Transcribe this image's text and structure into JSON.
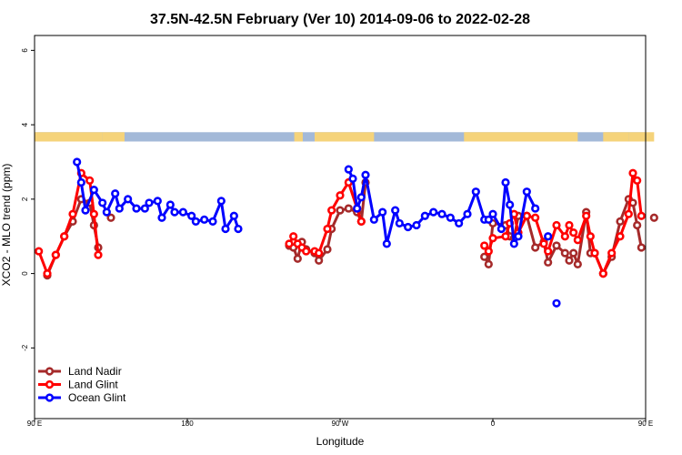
{
  "chart_data": {
    "type": "line",
    "title": "37.5N-42.5N February (Ver 10)   2014-09-06 to 2022-02-28",
    "xlabel": "Longitude",
    "ylabel": "XCO2 - MLO trend (ppm)",
    "xlim": [
      90,
      450
    ],
    "ylim": [
      -3.9,
      6.4
    ],
    "xticks": [
      {
        "value": 90,
        "label": "90 E"
      },
      {
        "value": 180,
        "label": "180"
      },
      {
        "value": 270,
        "label": "90 W"
      },
      {
        "value": 360,
        "label": "0"
      },
      {
        "value": 450,
        "label": "90 E"
      },
      {
        "value": 540,
        "label": "180"
      }
    ],
    "yticks": [
      {
        "value": -2,
        "label": "-2"
      },
      {
        "value": 0,
        "label": "0"
      },
      {
        "value": 2,
        "label": "2"
      },
      {
        "value": 4,
        "label": "4"
      },
      {
        "value": 6,
        "label": "6"
      }
    ],
    "grid": false,
    "legend_position": "bottom-left",
    "land_mask_strip": {
      "y_top": 3.8,
      "y_bottom": 3.55,
      "land_color": "#f5d37a",
      "ocean_color": "#a3b9d8"
    },
    "series": [
      {
        "name": "Land Nadir",
        "color": "#a52a2a",
        "segments": [
          [
            [
              97.5,
              -0.05
            ],
            [
              102.5,
              0.5
            ],
            [
              107.5,
              1.0
            ],
            [
              112.5,
              1.4
            ],
            [
              117.5,
              2.0
            ],
            [
              122.5,
              1.9
            ],
            [
              125,
              1.3
            ],
            [
              127.5,
              0.7
            ]
          ],
          [
            [
              135,
              1.5
            ]
          ],
          [
            [
              240,
              0.75
            ],
            [
              242.5,
              0.7
            ],
            [
              245,
              0.4
            ],
            [
              247.5,
              0.85
            ],
            [
              250,
              0.65
            ],
            [
              255,
              0.55
            ],
            [
              257.5,
              0.35
            ],
            [
              262.5,
              0.65
            ],
            [
              265,
              1.2
            ],
            [
              270,
              1.7
            ],
            [
              275,
              1.75
            ],
            [
              280,
              1.65
            ],
            [
              282.5,
              1.4
            ],
            [
              285,
              2.45
            ]
          ],
          [
            [
              355,
              0.45
            ],
            [
              357.5,
              0.25
            ],
            [
              360,
              1.35
            ],
            [
              367.5,
              1.3
            ],
            [
              370,
              1.0
            ],
            [
              372.5,
              0.95
            ],
            [
              375,
              1.55
            ],
            [
              380,
              1.55
            ],
            [
              385,
              0.7
            ],
            [
              390,
              0.85
            ],
            [
              392.5,
              0.3
            ],
            [
              397.5,
              0.75
            ],
            [
              402.5,
              0.55
            ],
            [
              405,
              0.35
            ],
            [
              407.5,
              0.55
            ],
            [
              410,
              0.25
            ],
            [
              415,
              1.65
            ],
            [
              417.5,
              0.55
            ],
            [
              420,
              0.55
            ],
            [
              425,
              0.0
            ],
            [
              430,
              0.45
            ],
            [
              435,
              1.4
            ],
            [
              440,
              2.0
            ],
            [
              442.5,
              1.9
            ],
            [
              445,
              1.3
            ],
            [
              447.5,
              0.7
            ]
          ],
          [
            [
              455,
              1.5
            ]
          ]
        ]
      },
      {
        "name": "Land Glint",
        "color": "#ff0000",
        "segments": [
          [
            [
              92.5,
              0.6
            ],
            [
              97.5,
              0.0
            ],
            [
              102.5,
              0.5
            ],
            [
              107.5,
              1.0
            ],
            [
              112.5,
              1.6
            ],
            [
              117.5,
              2.7
            ],
            [
              122.5,
              2.5
            ],
            [
              125,
              1.6
            ],
            [
              127.5,
              0.5
            ]
          ],
          [
            [
              240,
              0.8
            ],
            [
              242.5,
              1.0
            ],
            [
              245,
              0.8
            ],
            [
              247.5,
              0.7
            ],
            [
              250,
              0.6
            ],
            [
              255,
              0.6
            ],
            [
              257.5,
              0.55
            ],
            [
              262.5,
              1.2
            ],
            [
              265,
              1.7
            ],
            [
              270,
              2.1
            ],
            [
              275,
              2.45
            ],
            [
              280,
              1.75
            ],
            [
              282.5,
              1.4
            ]
          ],
          [
            [
              355,
              0.75
            ],
            [
              357.5,
              0.6
            ],
            [
              360,
              0.95
            ],
            [
              367.5,
              1.0
            ],
            [
              370,
              1.35
            ],
            [
              372.5,
              1.6
            ],
            [
              375,
              1.1
            ],
            [
              380,
              1.55
            ],
            [
              385,
              1.5
            ],
            [
              390,
              0.8
            ],
            [
              392.5,
              0.6
            ],
            [
              397.5,
              1.3
            ],
            [
              402.5,
              1.0
            ],
            [
              405,
              1.3
            ],
            [
              407.5,
              1.1
            ],
            [
              410,
              0.9
            ],
            [
              415,
              1.55
            ],
            [
              417.5,
              1.0
            ],
            [
              420,
              0.55
            ],
            [
              425,
              0.0
            ],
            [
              430,
              0.55
            ],
            [
              435,
              1.0
            ],
            [
              440,
              1.6
            ],
            [
              442.5,
              2.7
            ],
            [
              445,
              2.5
            ],
            [
              447.5,
              1.55
            ]
          ]
        ]
      },
      {
        "name": "Ocean Glint",
        "color": "#0000ff",
        "segments": [
          [
            [
              115,
              3.0
            ],
            [
              117.5,
              2.45
            ],
            [
              120,
              1.7
            ],
            [
              125,
              2.25
            ],
            [
              130,
              1.9
            ],
            [
              132.5,
              1.65
            ],
            [
              137.5,
              2.15
            ],
            [
              140,
              1.75
            ],
            [
              145,
              2.0
            ],
            [
              150,
              1.75
            ],
            [
              155,
              1.75
            ],
            [
              157.5,
              1.9
            ],
            [
              162.5,
              1.95
            ],
            [
              165,
              1.5
            ],
            [
              170,
              1.85
            ],
            [
              172.5,
              1.65
            ],
            [
              177.5,
              1.65
            ],
            [
              182.5,
              1.55
            ],
            [
              185,
              1.4
            ],
            [
              190,
              1.45
            ],
            [
              195,
              1.4
            ],
            [
              200,
              1.95
            ],
            [
              202.5,
              1.2
            ],
            [
              207.5,
              1.55
            ],
            [
              210,
              1.2
            ]
          ],
          [
            [
              275,
              2.8
            ],
            [
              277.5,
              2.55
            ],
            [
              280,
              1.75
            ],
            [
              282.5,
              2.05
            ],
            [
              285,
              2.65
            ],
            [
              290,
              1.45
            ],
            [
              295,
              1.65
            ],
            [
              297.5,
              0.8
            ],
            [
              302.5,
              1.7
            ],
            [
              305,
              1.35
            ],
            [
              310,
              1.25
            ],
            [
              315,
              1.3
            ],
            [
              320,
              1.55
            ],
            [
              325,
              1.65
            ],
            [
              330,
              1.6
            ],
            [
              335,
              1.5
            ],
            [
              340,
              1.35
            ],
            [
              345,
              1.6
            ],
            [
              350,
              2.2
            ],
            [
              355,
              1.45
            ],
            [
              357.5,
              1.45
            ],
            [
              360,
              1.6
            ],
            [
              365,
              1.2
            ],
            [
              367.5,
              2.45
            ],
            [
              370,
              1.85
            ],
            [
              372.5,
              0.8
            ],
            [
              375,
              1.0
            ],
            [
              380,
              2.2
            ],
            [
              385,
              1.75
            ]
          ],
          [
            [
              392.5,
              1.0
            ]
          ],
          [
            [
              397.5,
              -0.8
            ]
          ]
        ]
      }
    ]
  }
}
